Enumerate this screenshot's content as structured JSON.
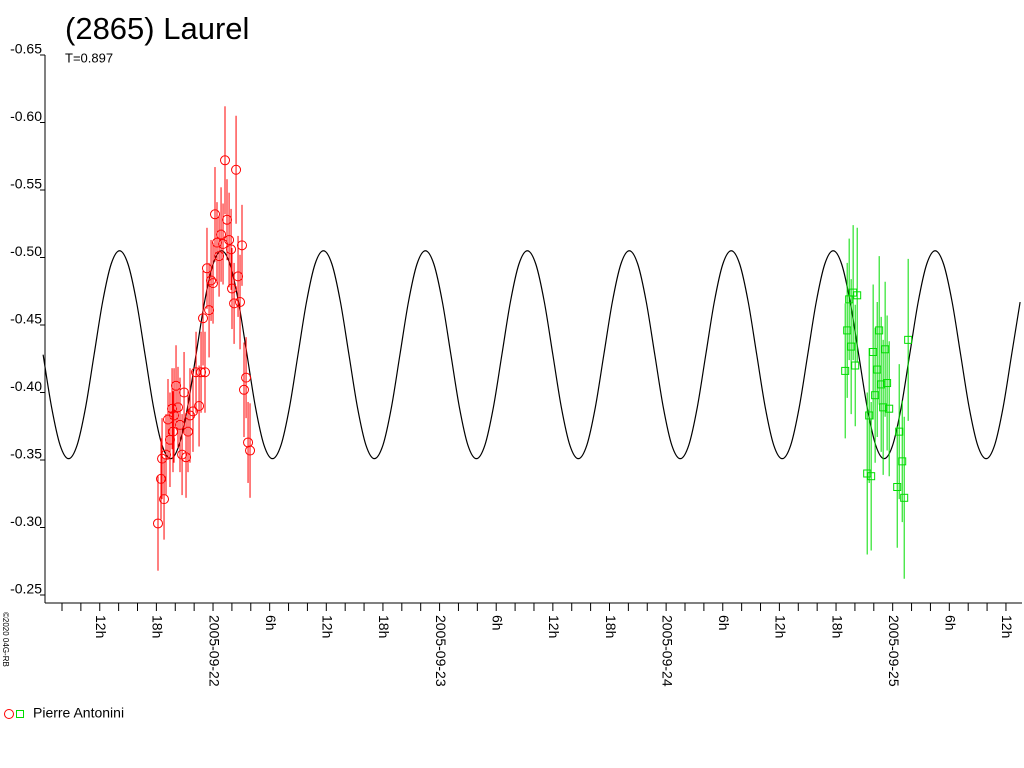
{
  "chart_data": {
    "type": "scatter",
    "title": "(2865) Laurel",
    "subtitle": "T=0.897",
    "copyright": "©2020 04G-RB",
    "xlim": [
      -17.8,
      85.7
    ],
    "ylim": [
      -0.25,
      -0.65
    ],
    "yticks": [
      -0.65,
      {
        "value": -0.6,
        "label": "-0.60"
      },
      -0.55,
      {
        "value": -0.5,
        "label": "-0.50"
      },
      -0.45,
      {
        "value": -0.4,
        "label": "-0.40"
      },
      -0.35,
      {
        "value": -0.3,
        "label": "-0.30"
      },
      -0.25
    ],
    "xticks": [
      {
        "value": -12,
        "label": "12h"
      },
      {
        "value": -6,
        "label": "18h"
      },
      {
        "value": 0,
        "label": "2005-09-22"
      },
      {
        "value": 6,
        "label": "6h"
      },
      {
        "value": 12,
        "label": "12h"
      },
      {
        "value": 18,
        "label": "18h"
      },
      {
        "value": 24,
        "label": "2005-09-23"
      },
      {
        "value": 30,
        "label": "6h"
      },
      {
        "value": 36,
        "label": "12h"
      },
      {
        "value": 42,
        "label": "18h"
      },
      {
        "value": 48,
        "label": "2005-09-24"
      },
      {
        "value": 54,
        "label": "6h"
      },
      {
        "value": 60,
        "label": "12h"
      },
      {
        "value": 66,
        "label": "18h"
      },
      {
        "value": 72,
        "label": "2005-09-25"
      },
      {
        "value": 78,
        "label": "6h"
      },
      {
        "value": 84,
        "label": "12h"
      }
    ],
    "xminorticks": [
      -16,
      -14,
      -10,
      -8,
      -4,
      -2,
      2,
      4,
      8,
      10,
      14,
      16,
      20,
      22,
      26,
      28,
      32,
      34,
      38,
      40,
      44,
      46,
      50,
      52,
      56,
      58,
      62,
      64,
      68,
      70,
      74,
      76,
      80,
      82
    ],
    "model": {
      "color": "#000000",
      "x": [
        -18,
        -17.1,
        -16.2,
        -15.3,
        -14.4,
        -13.5,
        -12.6,
        -11.7,
        -10.8,
        -9.9,
        -9,
        -8.1,
        -7.2,
        -6.3,
        -5.4,
        -4.5,
        -3.6,
        -2.7,
        -1.8,
        -0.9,
        0,
        0.9,
        1.8,
        2.7,
        3.6,
        4.5,
        5.4,
        6.3,
        7.2,
        8.1,
        9,
        9.9,
        10.8,
        11.7,
        12.6,
        13.5,
        14.4,
        15.3,
        16.2,
        17.1,
        18,
        18.9,
        19.8,
        20.7,
        21.6,
        22.5,
        23.4,
        24.3,
        25.2,
        26.1,
        27,
        27.9,
        28.8,
        29.7,
        30.6,
        31.5,
        32.4,
        33.3,
        34.2,
        35.1,
        36,
        36.9,
        37.8,
        38.7,
        39.6,
        40.5,
        41.4,
        42.3,
        43.2,
        44.1,
        45,
        45.9,
        46.8,
        47.7,
        48.6,
        49.5,
        50.4,
        51.3,
        52.2,
        53.1,
        54,
        54.9,
        55.8,
        56.7,
        57.6,
        58.5,
        59.4,
        60.3,
        61.2,
        62.1,
        63,
        63.9,
        64.8,
        65.7,
        66.6,
        67.5,
        68.4,
        69.3,
        70.2,
        71.1,
        72,
        72.9,
        73.8,
        74.7,
        75.6,
        76.5,
        77.4,
        78.3,
        79.2,
        80.1,
        81,
        81.9,
        82.8,
        83.7,
        84.6,
        85.5
      ],
      "values": [
        -0.428,
        -0.389,
        -0.361,
        -0.351,
        -0.361,
        -0.389,
        -0.428,
        -0.467,
        -0.495,
        -0.505,
        -0.495,
        -0.467,
        -0.428,
        -0.389,
        -0.361,
        -0.351,
        -0.361,
        -0.389,
        -0.428,
        -0.467,
        -0.495,
        -0.505,
        -0.495,
        -0.467,
        -0.428,
        -0.389,
        -0.361,
        -0.351,
        -0.361,
        -0.389,
        -0.428,
        -0.467,
        -0.495,
        -0.505,
        -0.495,
        -0.467,
        -0.428,
        -0.389,
        -0.361,
        -0.351,
        -0.361,
        -0.389,
        -0.428,
        -0.467,
        -0.495,
        -0.505,
        -0.495,
        -0.467,
        -0.428,
        -0.389,
        -0.361,
        -0.351,
        -0.361,
        -0.389,
        -0.428,
        -0.467,
        -0.495,
        -0.505,
        -0.495,
        -0.467,
        -0.428,
        -0.389,
        -0.361,
        -0.351,
        -0.361,
        -0.389,
        -0.428,
        -0.467,
        -0.495,
        -0.505,
        -0.495,
        -0.467,
        -0.428,
        -0.389,
        -0.361,
        -0.351,
        -0.361,
        -0.389,
        -0.428,
        -0.467,
        -0.495,
        -0.505,
        -0.495,
        -0.467,
        -0.428,
        -0.389,
        -0.361,
        -0.351,
        -0.361,
        -0.389,
        -0.428,
        -0.467,
        -0.495,
        -0.505,
        -0.495,
        -0.467,
        -0.428,
        -0.389,
        -0.361,
        -0.351,
        -0.361,
        -0.389,
        -0.428,
        -0.467,
        -0.495,
        -0.505,
        -0.495,
        -0.467,
        -0.428,
        -0.389,
        -0.361,
        -0.351,
        -0.361,
        -0.389,
        -0.428,
        -0.467
      ]
    },
    "series": [
      {
        "name": "Pierre Antonini",
        "sessions": [
          {
            "color": "#ff0000",
            "marker": "circle",
            "x": [
              -5.83,
              -5.51,
              -5.4,
              -5.19,
              -4.98,
              -4.77,
              -4.56,
              -4.34,
              -4.24,
              -4.13,
              -3.92,
              -3.71,
              -3.5,
              -3.28,
              -3.07,
              -2.86,
              -2.65,
              -2.44,
              -2.12,
              -1.8,
              -1.48,
              -1.27,
              -1.06,
              -0.85,
              -0.64,
              -0.42,
              -0.21,
              0,
              0.21,
              0.42,
              0.64,
              0.85,
              1.06,
              1.27,
              1.48,
              1.7,
              1.91,
              2.01,
              2.23,
              2.44,
              2.65,
              2.86,
              3.07,
              3.28,
              3.5,
              3.71,
              3.92
            ],
            "values": [
              -0.303,
              -0.336,
              -0.351,
              -0.321,
              -0.354,
              -0.38,
              -0.365,
              -0.388,
              -0.371,
              -0.383,
              -0.405,
              -0.389,
              -0.376,
              -0.354,
              -0.4,
              -0.352,
              -0.371,
              -0.383,
              -0.386,
              -0.415,
              -0.39,
              -0.415,
              -0.455,
              -0.415,
              -0.492,
              -0.461,
              -0.483,
              -0.481,
              -0.532,
              -0.511,
              -0.501,
              -0.517,
              -0.51,
              -0.572,
              -0.528,
              -0.513,
              -0.506,
              -0.477,
              -0.466,
              -0.565,
              -0.486,
              -0.467,
              -0.509,
              -0.402,
              -0.411,
              -0.363,
              -0.357
            ],
            "errors": [
              0.035,
              0.03,
              0.03,
              0.03,
              0.03,
              0.03,
              0.035,
              0.03,
              0.03,
              0.035,
              0.03,
              0.03,
              0.035,
              0.03,
              0.03,
              0.03,
              0.03,
              0.035,
              0.03,
              0.03,
              0.03,
              0.03,
              0.035,
              0.03,
              0.03,
              0.035,
              0.03,
              0.03,
              0.035,
              0.03,
              0.03,
              0.035,
              0.03,
              0.04,
              0.03,
              0.035,
              0.03,
              0.03,
              0.03,
              0.04,
              0.03,
              0.035,
              0.03,
              0.035,
              0.03,
              0.03,
              0.035
            ]
          },
          {
            "color": "#00dd00",
            "marker": "square",
            "x": [
              66.97,
              67.18,
              67.39,
              67.6,
              67.81,
              68.03,
              68.24,
              69.3,
              69.51,
              69.72,
              69.93,
              70.14,
              70.36,
              70.57,
              70.78,
              70.99,
              71.2,
              71.41,
              71.63,
              72.48,
              72.69,
              73.01,
              73.22,
              73.64
            ],
            "values": [
              -0.416,
              -0.446,
              -0.469,
              -0.434,
              -0.474,
              -0.42,
              -0.472,
              -0.34,
              -0.383,
              -0.338,
              -0.43,
              -0.398,
              -0.417,
              -0.446,
              -0.406,
              -0.389,
              -0.432,
              -0.407,
              -0.388,
              -0.33,
              -0.371,
              -0.349,
              -0.322,
              -0.439
            ],
            "errors": [
              0.05,
              0.05,
              0.045,
              0.05,
              0.05,
              0.045,
              0.05,
              0.06,
              0.05,
              0.055,
              0.05,
              0.05,
              0.05,
              0.055,
              0.05,
              0.05,
              0.05,
              0.05,
              0.05,
              0.045,
              0.05,
              0.045,
              0.06,
              0.06
            ]
          }
        ]
      }
    ]
  }
}
